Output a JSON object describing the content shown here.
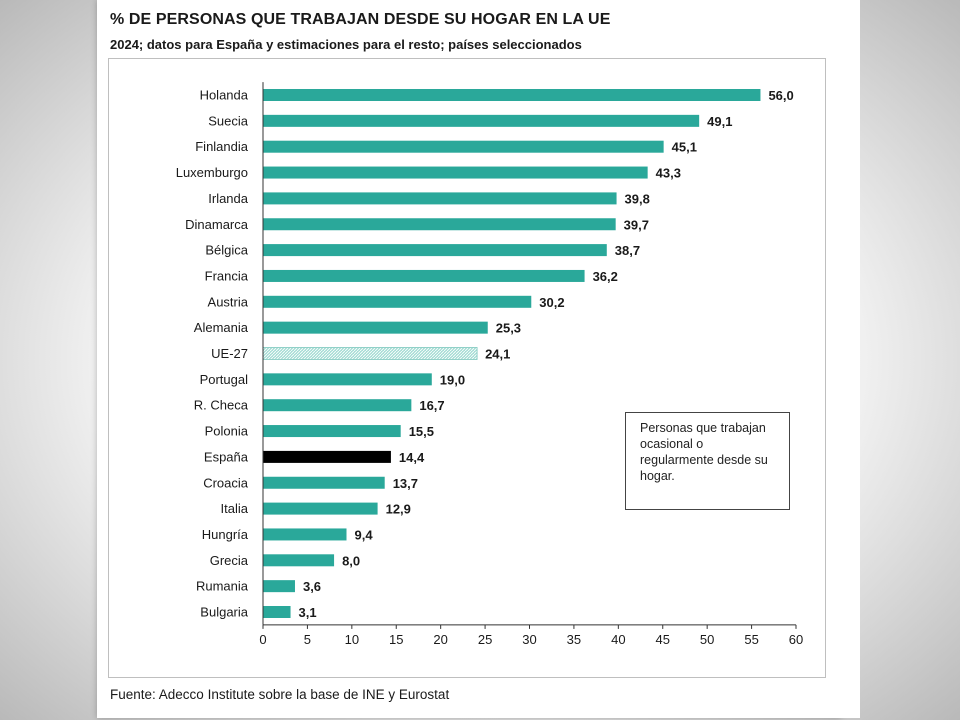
{
  "page": {
    "title": "% DE PERSONAS QUE TRABAJAN DESDE SU HOGAR EN LA UE",
    "subtitle": "2024; datos para España y estimaciones para el resto; países seleccionados",
    "legend_text": "Personas que trabajan ocasional o regularmente desde su hogar.",
    "source": "Fuente: Adecco Institute sobre la base de INE y Eurostat"
  },
  "chart_data": {
    "type": "bar",
    "orientation": "horizontal",
    "title": "% DE PERSONAS QUE TRABAJAN DESDE SU HOGAR EN LA UE",
    "subtitle": "2024; datos para España y estimaciones para el resto; países seleccionados",
    "categories": [
      "Holanda",
      "Suecia",
      "Finlandia",
      "Luxemburgo",
      "Irlanda",
      "Dinamarca",
      "Bélgica",
      "Francia",
      "Austria",
      "Alemania",
      "UE-27",
      "Portugal",
      "R. Checa",
      "Polonia",
      "España",
      "Croacia",
      "Italia",
      "Hungría",
      "Grecia",
      "Rumania",
      "Bulgaria"
    ],
    "values": [
      56.0,
      49.1,
      45.1,
      43.3,
      39.8,
      39.7,
      38.7,
      36.2,
      30.2,
      25.3,
      24.1,
      19.0,
      16.7,
      15.5,
      14.4,
      13.7,
      12.9,
      9.4,
      8.0,
      3.6,
      3.1
    ],
    "value_labels": [
      "56,0",
      "49,1",
      "45,1",
      "43,3",
      "39,8",
      "39,7",
      "38,7",
      "36,2",
      "30,2",
      "25,3",
      "24,1",
      "19,0",
      "16,7",
      "15,5",
      "14,4",
      "13,7",
      "12,9",
      "9,4",
      "8,0",
      "3,6",
      "3,1"
    ],
    "xlim": [
      0,
      60
    ],
    "xticks": [
      0,
      5,
      10,
      15,
      20,
      25,
      30,
      35,
      40,
      45,
      50,
      55,
      60
    ],
    "grid": false,
    "legend_placement": "right",
    "colors": {
      "default": "#2aa89a",
      "highlight": "#000000",
      "average": "#a6ddd5"
    },
    "bar_styles": {
      "España": "highlight",
      "UE-27": "average"
    }
  }
}
